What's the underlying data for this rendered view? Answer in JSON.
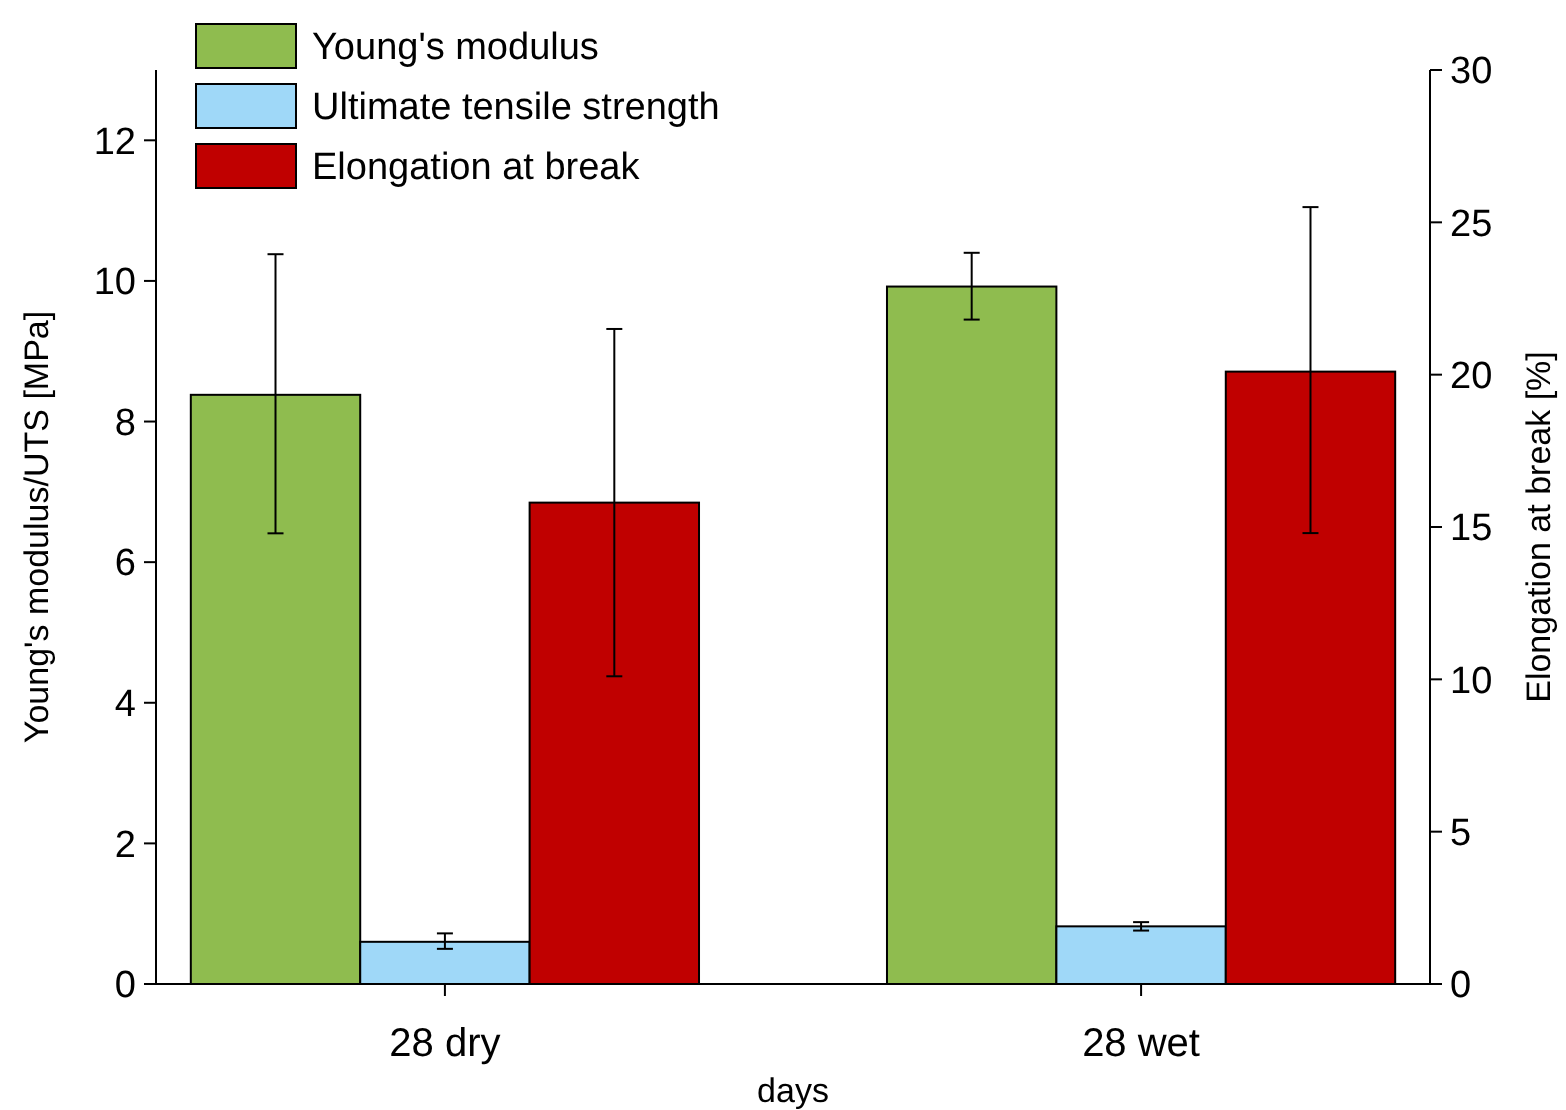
{
  "chart_data": {
    "type": "bar",
    "categories": [
      "28 dry",
      "28 wet"
    ],
    "xlabel": "days",
    "ylabel": "Young's modulus/UTS [MPa]",
    "y2label": "Elongation at break [%]",
    "ylim": [
      0,
      13
    ],
    "yticks": [
      0,
      2,
      4,
      6,
      8,
      10,
      12
    ],
    "y2lim": [
      0,
      30
    ],
    "y2ticks": [
      0,
      5,
      10,
      15,
      20,
      25,
      30
    ],
    "legend": "top left",
    "grid": false,
    "series": [
      {
        "name": "Young's modulus",
        "color": "#8fbc4f",
        "values": [
          8.38,
          9.92
        ],
        "errors": [
          [
            6.41,
            10.38
          ],
          [
            9.45,
            10.4
          ]
        ]
      },
      {
        "name": "Ultimate tensile strength",
        "color": "#9fd8f8",
        "values": [
          0.6,
          0.82
        ],
        "errors": [
          [
            0.5,
            0.72
          ],
          [
            0.76,
            0.88
          ]
        ]
      },
      {
        "name": "Elongation at break",
        "color": "#c00000",
        "axis": "y2",
        "values": [
          15.8,
          20.1
        ],
        "errors": [
          [
            10.1,
            21.5
          ],
          [
            14.8,
            25.5
          ]
        ]
      }
    ]
  }
}
